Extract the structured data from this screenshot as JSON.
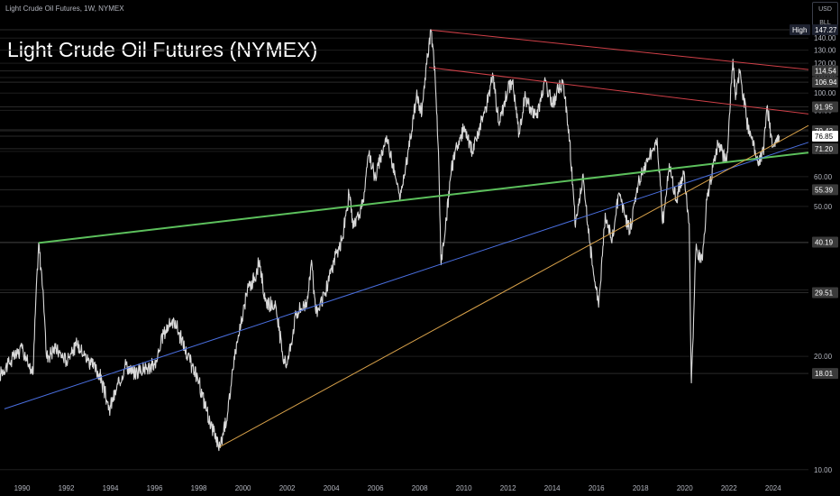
{
  "header": {
    "symbol_line": "Light Crude Oil Futures, 1W, NYMEX",
    "title": "Light Crude Oil Futures (NYMEX)"
  },
  "unit_box": {
    "currency": "USD",
    "unit": "BLL"
  },
  "chart_data": {
    "type": "line",
    "title": "Light Crude Oil Futures (NYMEX)",
    "xlabel": "",
    "ylabel": "",
    "y_scale": "log",
    "ylim": [
      9.4,
      160
    ],
    "xlim": [
      1989.0,
      2025.6
    ],
    "x_ticks": [
      "1990",
      "1992",
      "1994",
      "1996",
      "1998",
      "2000",
      "2002",
      "2004",
      "2006",
      "2008",
      "2010",
      "2012",
      "2014",
      "2016",
      "2018",
      "2020",
      "2022",
      "2024"
    ],
    "y_ticks": [
      "10.00",
      "20.00",
      "30.00",
      "40.00",
      "50.00",
      "60.00",
      "70.00",
      "80.00",
      "90.00",
      "100.00",
      "110.00",
      "120.00",
      "130.00",
      "140.00"
    ],
    "grid": "horizontal",
    "price_labels": [
      {
        "prefix": "High",
        "value": "147.27",
        "bg": "#1e2230",
        "fg": "#ffffff"
      },
      {
        "value": "114.54",
        "bg": "#3a3a3a",
        "fg": "#ffffff"
      },
      {
        "value": "106.94",
        "bg": "#3a3a3a",
        "fg": "#ffffff"
      },
      {
        "value": "91.95",
        "bg": "#3a3a3a",
        "fg": "#ffffff"
      },
      {
        "value": "79.42",
        "bg": "#3a3a3a",
        "fg": "#ffffff"
      },
      {
        "value": "76.85",
        "bg": "#ffffff",
        "fg": "#000000"
      },
      {
        "value": "71.20",
        "bg": "#3a3a3a",
        "fg": "#ffffff"
      },
      {
        "value": "55.39",
        "bg": "#3a3a3a",
        "fg": "#ffffff"
      },
      {
        "value": "40.19",
        "bg": "#3a3a3a",
        "fg": "#ffffff"
      },
      {
        "value": "29.51",
        "bg": "#3a3a3a",
        "fg": "#ffffff"
      },
      {
        "value": "18.01",
        "bg": "#3a3a3a",
        "fg": "#ffffff"
      }
    ],
    "series": [
      {
        "color": "#d9d9d9",
        "points": [
          [
            1989.0,
            18
          ],
          [
            1989.5,
            19.5
          ],
          [
            1990.0,
            21
          ],
          [
            1990.3,
            19
          ],
          [
            1990.5,
            18
          ],
          [
            1990.6,
            26
          ],
          [
            1990.75,
            40
          ],
          [
            1990.95,
            30
          ],
          [
            1991.1,
            20
          ],
          [
            1991.5,
            21
          ],
          [
            1992.0,
            19.5
          ],
          [
            1992.5,
            21.5
          ],
          [
            1993.0,
            19.5
          ],
          [
            1993.5,
            18
          ],
          [
            1993.95,
            14.5
          ],
          [
            1994.4,
            17
          ],
          [
            1994.7,
            19
          ],
          [
            1995.0,
            18
          ],
          [
            1995.5,
            18.5
          ],
          [
            1996.0,
            19
          ],
          [
            1996.4,
            23
          ],
          [
            1996.8,
            25
          ],
          [
            1997.0,
            24
          ],
          [
            1997.5,
            20
          ],
          [
            1998.0,
            17
          ],
          [
            1998.5,
            13.5
          ],
          [
            1998.95,
            11.5
          ],
          [
            1999.3,
            14
          ],
          [
            1999.6,
            20
          ],
          [
            1999.9,
            24
          ],
          [
            2000.2,
            30
          ],
          [
            2000.6,
            33
          ],
          [
            2000.75,
            36
          ],
          [
            2001.0,
            28
          ],
          [
            2001.5,
            27
          ],
          [
            2001.8,
            20
          ],
          [
            2002.0,
            19
          ],
          [
            2002.4,
            26
          ],
          [
            2002.9,
            28
          ],
          [
            2003.1,
            36
          ],
          [
            2003.3,
            26
          ],
          [
            2003.7,
            29
          ],
          [
            2004.0,
            34
          ],
          [
            2004.5,
            41
          ],
          [
            2004.8,
            54
          ],
          [
            2005.0,
            44
          ],
          [
            2005.4,
            50
          ],
          [
            2005.7,
            69
          ],
          [
            2006.0,
            60
          ],
          [
            2006.5,
            77
          ],
          [
            2006.95,
            58
          ],
          [
            2007.1,
            52
          ],
          [
            2007.5,
            71
          ],
          [
            2007.85,
            98
          ],
          [
            2008.1,
            88
          ],
          [
            2008.3,
            120
          ],
          [
            2008.52,
            147
          ],
          [
            2008.7,
            110
          ],
          [
            2008.85,
            70
          ],
          [
            2008.97,
            35
          ],
          [
            2009.1,
            40
          ],
          [
            2009.4,
            60
          ],
          [
            2009.6,
            70
          ],
          [
            2010.0,
            80
          ],
          [
            2010.4,
            70
          ],
          [
            2010.8,
            85
          ],
          [
            2011.0,
            92
          ],
          [
            2011.3,
            113
          ],
          [
            2011.6,
            82
          ],
          [
            2012.0,
            103
          ],
          [
            2012.2,
            108
          ],
          [
            2012.5,
            78
          ],
          [
            2012.75,
            98
          ],
          [
            2013.0,
            92
          ],
          [
            2013.3,
            86
          ],
          [
            2013.65,
            108
          ],
          [
            2014.0,
            94
          ],
          [
            2014.3,
            103
          ],
          [
            2014.5,
            106
          ],
          [
            2014.75,
            80
          ],
          [
            2014.95,
            55
          ],
          [
            2015.05,
            44
          ],
          [
            2015.4,
            61
          ],
          [
            2015.7,
            40
          ],
          [
            2016.0,
            30
          ],
          [
            2016.1,
            27
          ],
          [
            2016.4,
            48
          ],
          [
            2016.7,
            40
          ],
          [
            2017.0,
            54
          ],
          [
            2017.5,
            43
          ],
          [
            2017.9,
            58
          ],
          [
            2018.3,
            66
          ],
          [
            2018.75,
            76
          ],
          [
            2019.0,
            45
          ],
          [
            2019.3,
            65
          ],
          [
            2019.6,
            52
          ],
          [
            2019.95,
            61
          ],
          [
            2020.2,
            45
          ],
          [
            2020.28,
            20
          ],
          [
            2020.3,
            17
          ],
          [
            2020.5,
            38
          ],
          [
            2020.8,
            36
          ],
          [
            2021.0,
            52
          ],
          [
            2021.5,
            74
          ],
          [
            2021.9,
            66
          ],
          [
            2022.0,
            84
          ],
          [
            2022.18,
            123
          ],
          [
            2022.3,
            96
          ],
          [
            2022.5,
            115
          ],
          [
            2022.8,
            85
          ],
          [
            2023.0,
            76
          ],
          [
            2023.35,
            66
          ],
          [
            2023.55,
            70
          ],
          [
            2023.72,
            92
          ],
          [
            2023.9,
            78
          ],
          [
            2024.0,
            72
          ],
          [
            2024.15,
            76
          ],
          [
            2024.28,
            77
          ]
        ]
      }
    ],
    "trendlines": [
      {
        "color": "#d04048",
        "from": [
          2008.52,
          147
        ],
        "to": [
          2025.6,
          115.5
        ]
      },
      {
        "color": "#d04048",
        "from": [
          2008.42,
          117
        ],
        "to": [
          2025.6,
          88
        ]
      },
      {
        "color": "#5cc05c",
        "from": [
          1990.75,
          40
        ],
        "to": [
          2025.6,
          69.5
        ],
        "width": 2
      },
      {
        "color": "#4a6fe0",
        "from": [
          1989.2,
          14.5
        ],
        "to": [
          2025.6,
          74
        ]
      },
      {
        "color": "#d9a24a",
        "from": [
          1998.95,
          11.5
        ],
        "to": [
          2025.6,
          82
        ]
      }
    ]
  }
}
